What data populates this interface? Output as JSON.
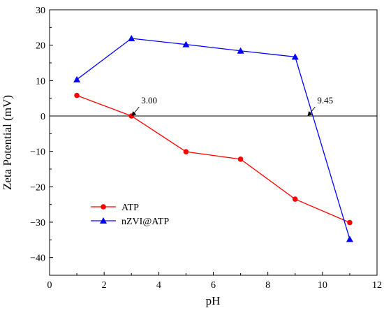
{
  "chart_data": {
    "type": "line",
    "xlabel": "pH",
    "ylabel": "Zeta Potential (mV)",
    "xlim": [
      0,
      12
    ],
    "ylim": [
      -45,
      30
    ],
    "xticks": [
      0,
      2,
      4,
      6,
      8,
      10,
      12
    ],
    "yticks": [
      -40,
      -30,
      -20,
      -10,
      0,
      10,
      20,
      30
    ],
    "xtick_labels": [
      "0",
      "2",
      "4",
      "6",
      "8",
      "10",
      "12"
    ],
    "ytick_labels": [
      "−40",
      "−30",
      "−20",
      "−10",
      "0",
      "10",
      "20",
      "30"
    ],
    "zero_line": true,
    "legend_position": "lower-left",
    "series": [
      {
        "name": "ATP",
        "color": "#ff0000",
        "marker": "circle",
        "x": [
          1,
          3,
          5,
          7,
          9,
          11
        ],
        "y": [
          5.8,
          0.0,
          -10.1,
          -12.2,
          -23.5,
          -30.1
        ]
      },
      {
        "name": "nZVI@ATP",
        "color": "#0000ff",
        "marker": "triangle",
        "x": [
          1,
          3,
          5,
          7,
          9,
          11
        ],
        "y": [
          10.3,
          21.9,
          20.2,
          18.4,
          16.7,
          -34.8
        ]
      }
    ],
    "annotations": [
      {
        "text": "3.00",
        "x": 3.0,
        "y": 0
      },
      {
        "text": "9.45",
        "x": 9.45,
        "y": 0
      }
    ]
  }
}
